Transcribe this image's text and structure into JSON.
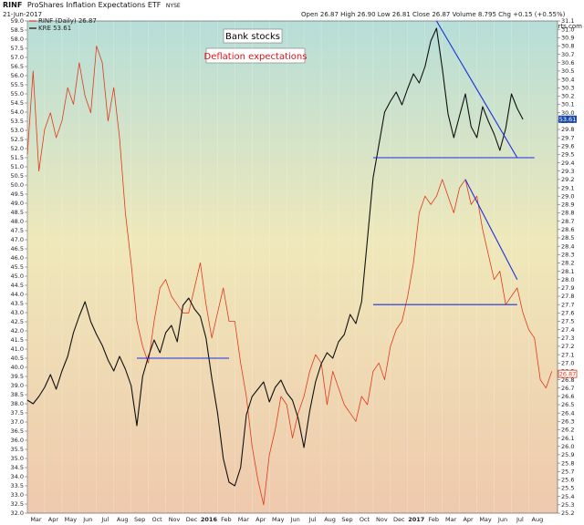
{
  "chart_data": {
    "type": "line",
    "header": {
      "symbol": "RINF",
      "title": "ProShares Inflation Expectations ETF",
      "exchange": "NYSE",
      "date": "21-Jun-2017",
      "quote": "Open 26.87  High 26.90  Low 26.81  Close 26.87  Volume 8.795  Chg +0.15 (+0.55%)",
      "watermark": "© StockCharts.com"
    },
    "legend": [
      {
        "label": "RINF (Daily) 26.87",
        "color": "#e0381c"
      },
      {
        "label": "KRE 53.61",
        "color": "#111111"
      }
    ],
    "annotations": [
      {
        "label": "Bank stocks",
        "color": "#000000"
      },
      {
        "label": "Deflation expectations",
        "color": "#e01010"
      }
    ],
    "left_axis": {
      "min": 32.0,
      "max": 59.0,
      "step": 0.5,
      "series": "KRE"
    },
    "right_axis": {
      "min": 25.2,
      "max": 31.1,
      "step": 0.1,
      "series": "RINF"
    },
    "x_labels": [
      "Mar",
      "Apr",
      "May",
      "Jun",
      "Jul",
      "Aug",
      "Sep",
      "Oct",
      "Nov",
      "Dec",
      "2016",
      "Feb",
      "Mar",
      "Apr",
      "May",
      "Jun",
      "Jul",
      "Aug",
      "Sep",
      "Oct",
      "Nov",
      "Dec",
      "2017",
      "Feb",
      "Mar",
      "Apr",
      "May",
      "Jun",
      "Jul",
      "Aug"
    ],
    "last_values": {
      "kre": "53.61",
      "rinf": "26.87"
    },
    "series": [
      {
        "name": "RINF",
        "color": "#e0381c",
        "axis": "right",
        "points": [
          [
            0,
            29.5
          ],
          [
            1,
            30.5
          ],
          [
            2,
            29.3
          ],
          [
            3,
            29.8
          ],
          [
            4,
            30.0
          ],
          [
            5,
            29.7
          ],
          [
            6,
            29.9
          ],
          [
            7,
            30.3
          ],
          [
            8,
            30.1
          ],
          [
            9,
            30.6
          ],
          [
            10,
            30.2
          ],
          [
            11,
            30.0
          ],
          [
            12,
            30.8
          ],
          [
            13,
            30.6
          ],
          [
            14,
            29.9
          ],
          [
            15,
            30.3
          ],
          [
            16,
            29.7
          ],
          [
            17,
            28.8
          ],
          [
            18,
            28.2
          ],
          [
            19,
            27.5
          ],
          [
            20,
            27.2
          ],
          [
            21,
            27.0
          ],
          [
            22,
            27.5
          ],
          [
            23,
            27.9
          ],
          [
            24,
            28.0
          ],
          [
            25,
            27.8
          ],
          [
            26,
            27.7
          ],
          [
            27,
            27.6
          ],
          [
            28,
            27.6
          ],
          [
            29,
            27.9
          ],
          [
            30,
            28.2
          ],
          [
            31,
            27.7
          ],
          [
            32,
            27.3
          ],
          [
            33,
            27.6
          ],
          [
            34,
            27.9
          ],
          [
            35,
            27.5
          ],
          [
            36,
            27.5
          ],
          [
            37,
            27.0
          ],
          [
            38,
            26.6
          ],
          [
            39,
            26.0
          ],
          [
            40,
            25.6
          ],
          [
            41,
            25.3
          ],
          [
            42,
            25.9
          ],
          [
            43,
            26.2
          ],
          [
            44,
            26.6
          ],
          [
            45,
            26.5
          ],
          [
            46,
            26.1
          ],
          [
            47,
            26.4
          ],
          [
            48,
            26.6
          ],
          [
            49,
            26.9
          ],
          [
            50,
            27.1
          ],
          [
            51,
            27.0
          ],
          [
            52,
            26.5
          ],
          [
            53,
            26.9
          ],
          [
            54,
            26.7
          ],
          [
            55,
            26.5
          ],
          [
            56,
            26.4
          ],
          [
            57,
            26.3
          ],
          [
            58,
            26.6
          ],
          [
            59,
            26.5
          ],
          [
            60,
            26.9
          ],
          [
            61,
            27.0
          ],
          [
            62,
            26.8
          ],
          [
            63,
            27.2
          ],
          [
            64,
            27.4
          ],
          [
            65,
            27.5
          ],
          [
            66,
            27.8
          ],
          [
            67,
            28.2
          ],
          [
            68,
            28.8
          ],
          [
            69,
            29.0
          ],
          [
            70,
            28.9
          ],
          [
            71,
            29.0
          ],
          [
            72,
            29.2
          ],
          [
            73,
            29.0
          ],
          [
            74,
            28.8
          ],
          [
            75,
            29.1
          ],
          [
            76,
            29.2
          ],
          [
            77,
            28.9
          ],
          [
            78,
            29.0
          ],
          [
            79,
            28.6
          ],
          [
            80,
            28.3
          ],
          [
            81,
            28.0
          ],
          [
            82,
            28.1
          ],
          [
            83,
            27.7
          ],
          [
            84,
            27.8
          ],
          [
            85,
            27.9
          ],
          [
            86,
            27.6
          ],
          [
            87,
            27.4
          ],
          [
            88,
            27.3
          ],
          [
            89,
            26.8
          ],
          [
            90,
            26.7
          ],
          [
            91,
            26.9
          ]
        ]
      },
      {
        "name": "KRE",
        "color": "#111111",
        "axis": "left",
        "points": [
          [
            0,
            38.2
          ],
          [
            1,
            38.0
          ],
          [
            2,
            38.4
          ],
          [
            3,
            38.9
          ],
          [
            4,
            39.6
          ],
          [
            5,
            38.8
          ],
          [
            6,
            39.8
          ],
          [
            7,
            40.6
          ],
          [
            8,
            41.9
          ],
          [
            9,
            42.8
          ],
          [
            10,
            43.6
          ],
          [
            11,
            42.5
          ],
          [
            12,
            41.8
          ],
          [
            13,
            41.2
          ],
          [
            14,
            40.4
          ],
          [
            15,
            39.8
          ],
          [
            16,
            40.6
          ],
          [
            17,
            39.9
          ],
          [
            18,
            39.0
          ],
          [
            19,
            36.8
          ],
          [
            20,
            39.5
          ],
          [
            21,
            40.6
          ],
          [
            22,
            41.5
          ],
          [
            23,
            40.8
          ],
          [
            24,
            41.9
          ],
          [
            25,
            42.3
          ],
          [
            26,
            41.4
          ],
          [
            27,
            43.4
          ],
          [
            28,
            43.8
          ],
          [
            29,
            43.2
          ],
          [
            30,
            42.8
          ],
          [
            31,
            41.6
          ],
          [
            32,
            39.4
          ],
          [
            33,
            37.5
          ],
          [
            34,
            35.0
          ],
          [
            35,
            33.7
          ],
          [
            36,
            33.5
          ],
          [
            37,
            34.5
          ],
          [
            38,
            37.4
          ],
          [
            39,
            38.4
          ],
          [
            40,
            38.8
          ],
          [
            41,
            39.2
          ],
          [
            42,
            38.1
          ],
          [
            43,
            38.9
          ],
          [
            44,
            39.3
          ],
          [
            45,
            38.6
          ],
          [
            46,
            38.2
          ],
          [
            47,
            37.2
          ],
          [
            48,
            35.6
          ],
          [
            49,
            37.6
          ],
          [
            50,
            39.2
          ],
          [
            51,
            40.2
          ],
          [
            52,
            40.8
          ],
          [
            53,
            40.5
          ],
          [
            54,
            41.4
          ],
          [
            55,
            41.8
          ],
          [
            56,
            42.9
          ],
          [
            57,
            42.4
          ],
          [
            58,
            43.6
          ],
          [
            59,
            47.0
          ],
          [
            60,
            50.4
          ],
          [
            61,
            52.2
          ],
          [
            62,
            54.0
          ],
          [
            63,
            54.6
          ],
          [
            64,
            55.1
          ],
          [
            65,
            54.4
          ],
          [
            66,
            55.3
          ],
          [
            67,
            56.1
          ],
          [
            68,
            55.6
          ],
          [
            69,
            56.5
          ],
          [
            70,
            57.9
          ],
          [
            71,
            58.6
          ],
          [
            72,
            56.4
          ],
          [
            73,
            53.9
          ],
          [
            74,
            52.6
          ],
          [
            75,
            53.8
          ],
          [
            76,
            55.0
          ],
          [
            77,
            53.2
          ],
          [
            78,
            52.6
          ],
          [
            79,
            54.3
          ],
          [
            80,
            53.5
          ],
          [
            81,
            52.8
          ],
          [
            82,
            51.9
          ],
          [
            83,
            53.1
          ],
          [
            84,
            55.0
          ],
          [
            85,
            54.2
          ],
          [
            86,
            53.6
          ]
        ]
      }
    ],
    "trendlines": [
      {
        "axis": "left",
        "from": [
          71,
          59.0
        ],
        "to": [
          85,
          51.5
        ]
      },
      {
        "axis": "left",
        "from": [
          60,
          51.5
        ],
        "to": [
          88,
          51.5
        ]
      },
      {
        "axis": "right",
        "from": [
          76,
          29.2
        ],
        "to": [
          85,
          28.0
        ]
      },
      {
        "axis": "right",
        "from": [
          60,
          27.7
        ],
        "to": [
          85,
          27.7
        ]
      },
      {
        "axis": "left",
        "from": [
          19,
          40.5
        ],
        "to": [
          35,
          40.5
        ]
      }
    ]
  }
}
